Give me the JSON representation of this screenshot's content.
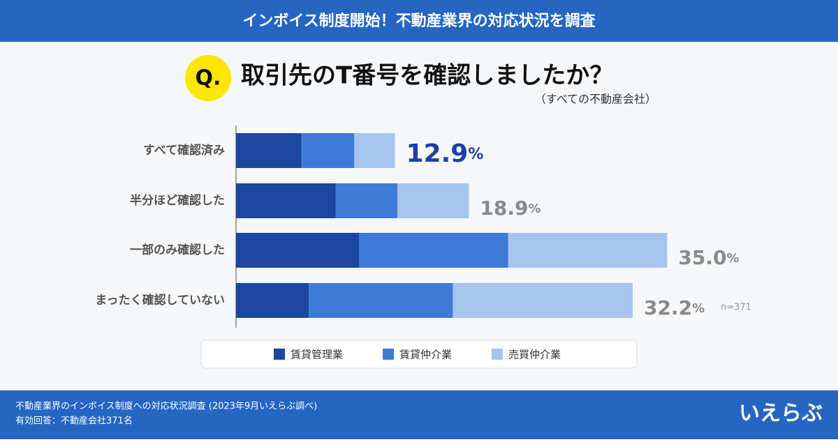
{
  "header": {
    "title": "インボイス制度開始！不動産業界の対応状況を調査"
  },
  "chart_data": {
    "type": "stacked-bar-horizontal",
    "question_mark": "Q.",
    "title": "取引先のT番号を確認しましたか？",
    "subtitle": "（すべての不動産会社）",
    "categories": [
      "すべて確認済み",
      "半分ほど確認した",
      "一部のみ確認した",
      "まったく確認していない"
    ],
    "series": [
      {
        "name": "賃貸管理業",
        "color": "#1b479f",
        "values": [
          5.3,
          8.1,
          10.0,
          5.9
        ]
      },
      {
        "name": "賃貸仲介業",
        "color": "#3f7bd6",
        "values": [
          4.3,
          5.0,
          12.1,
          11.7
        ]
      },
      {
        "name": "売買仲介業",
        "color": "#a7c3f0",
        "values": [
          3.3,
          5.8,
          12.9,
          14.6
        ]
      }
    ],
    "totals": [
      12.9,
      18.9,
      35.0,
      32.2
    ],
    "value_labels": [
      "12.9",
      "18.9",
      "35.0",
      "32.2"
    ],
    "unit": "%",
    "label_colors": [
      "#1d3fa8",
      "#8a8a8a",
      "#8a8a8a",
      "#8a8a8a"
    ],
    "xlim": [
      0,
      36
    ],
    "note": "n=371"
  },
  "footer": {
    "lines": [
      "不動産業界のインボイス制度への対応状況調査 (2023年9月いえらぶ調べ)",
      "有効回答：不動産会社371名"
    ],
    "logo": "いえらぶ"
  }
}
